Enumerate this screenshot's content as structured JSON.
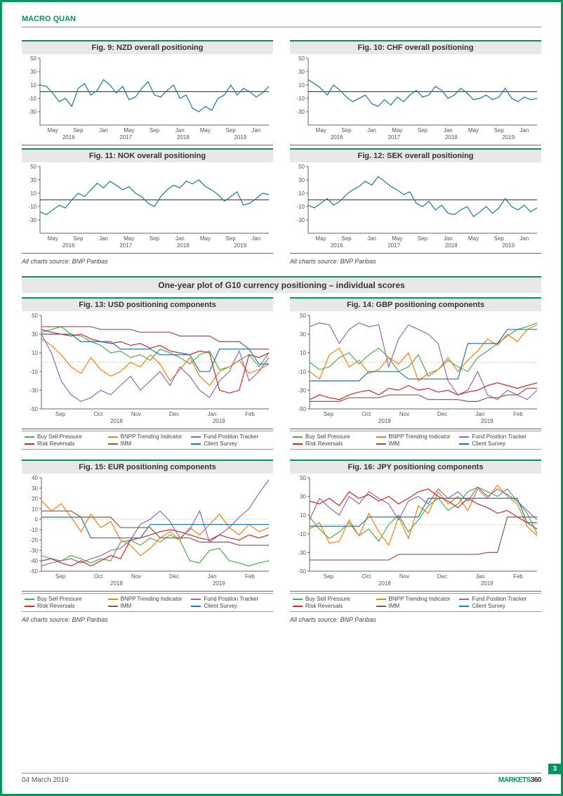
{
  "header": {
    "text": "MACRO QUAN"
  },
  "footer": {
    "date": "04 March 2019",
    "brand1": "MARKETS",
    "brand2": "360",
    "page": "3"
  },
  "source_label": "All charts source: BNP Paribas",
  "section_title": "One-year plot of G10 currency positioning – individual scores",
  "small_axis": {
    "ylim": [
      -50,
      50
    ],
    "yticks": [
      -30,
      -10,
      10,
      30,
      50
    ],
    "xlabels_top": [
      "May",
      "Sep",
      "Jan",
      "May",
      "Sep",
      "Jan",
      "May",
      "Sep",
      "Jan"
    ],
    "xlabels_bot": [
      "2016",
      "2017",
      "2018",
      "2019"
    ],
    "line_color": "#2a7fa8",
    "zero_color": "#333333",
    "tick_fontsize": 8
  },
  "charts_small": [
    {
      "id": "fig9",
      "title": "Fig. 9: NZD overall positioning",
      "values": [
        10,
        8,
        -2,
        -15,
        -10,
        -22,
        5,
        12,
        -5,
        2,
        18,
        10,
        -2,
        8,
        -12,
        -8,
        5,
        15,
        -5,
        -8,
        2,
        10,
        -10,
        -5,
        -25,
        -30,
        -22,
        -28,
        -10,
        -5,
        10,
        -5,
        5,
        0,
        -8,
        -2,
        8
      ]
    },
    {
      "id": "fig10",
      "title": "Fig. 10: CHF overall positioning",
      "values": [
        18,
        12,
        5,
        -5,
        10,
        2,
        -8,
        -15,
        -10,
        -5,
        -18,
        -22,
        -12,
        -20,
        -8,
        -15,
        -5,
        2,
        -8,
        -5,
        8,
        2,
        -10,
        -5,
        5,
        -2,
        -12,
        -10,
        -5,
        -12,
        -8,
        5,
        -10,
        -15,
        -8,
        -12,
        -10
      ]
    },
    {
      "id": "fig11",
      "title": "Fig. 11: NOK overall positioning",
      "values": [
        -18,
        -22,
        -15,
        -8,
        -12,
        0,
        10,
        5,
        15,
        25,
        18,
        28,
        22,
        15,
        20,
        10,
        5,
        -5,
        -10,
        5,
        15,
        22,
        18,
        28,
        24,
        30,
        20,
        15,
        8,
        -2,
        5,
        12,
        -8,
        -5,
        2,
        10,
        8
      ]
    },
    {
      "id": "fig12",
      "title": "Fig. 12: SEK overall positioning",
      "values": [
        -8,
        -12,
        -5,
        2,
        -8,
        -2,
        8,
        15,
        20,
        28,
        22,
        35,
        28,
        20,
        15,
        8,
        12,
        -5,
        -10,
        -2,
        -15,
        -8,
        -20,
        -22,
        -15,
        -10,
        -25,
        -18,
        -10,
        -20,
        -12,
        2,
        -10,
        -15,
        -8,
        -18,
        -12
      ]
    }
  ],
  "comp_axis": {
    "ylim": [
      -50,
      50
    ],
    "xlabels_top": [
      "Sep",
      "Oct",
      "Nov",
      "Dec",
      "Jan",
      "Feb"
    ],
    "xlabels_bot": [
      "2018",
      "2019"
    ],
    "tick_fontsize": 8,
    "zero_color": "#cccccc"
  },
  "legend_items": [
    {
      "label": "Buy Sell Pressure",
      "color": "#4daf4a"
    },
    {
      "label": "BNPP Trending Indicator",
      "color": "#ff7f0e"
    },
    {
      "label": "Fund Position Tracker",
      "color": "#9467bd"
    },
    {
      "label": "Risk Reversals",
      "color": "#d62728"
    },
    {
      "label": "IMM",
      "color": "#8c564b"
    },
    {
      "label": "Client Survey",
      "color": "#1f77b4"
    }
  ],
  "charts_comp": [
    {
      "id": "fig13",
      "title": "Fig. 13: USD positioning components",
      "yticks": [
        -50,
        -30,
        -10,
        10,
        30,
        50
      ],
      "series": {
        "Buy Sell Pressure": [
          32,
          35,
          38,
          30,
          28,
          22,
          18,
          10,
          12,
          5,
          8,
          2,
          14,
          10,
          5,
          -2,
          8,
          12,
          -8,
          -5,
          2,
          8,
          -5,
          10
        ],
        "BNPP Trending Indicator": [
          25,
          18,
          8,
          -5,
          -12,
          5,
          -8,
          -15,
          -10,
          0,
          -5,
          8,
          -2,
          -20,
          -8,
          5,
          -15,
          -25,
          -10,
          -5,
          2,
          -12,
          -8,
          -2
        ],
        "Fund Position Tracker": [
          30,
          10,
          -20,
          -35,
          -42,
          -38,
          -30,
          -35,
          -25,
          -15,
          -30,
          -20,
          -10,
          -25,
          -5,
          -15,
          -30,
          -38,
          -20,
          -10,
          12,
          -20,
          -10,
          5
        ],
        "Risk Reversals": [
          35,
          32,
          30,
          28,
          30,
          25,
          22,
          20,
          22,
          18,
          20,
          15,
          18,
          12,
          10,
          8,
          12,
          10,
          -30,
          -33,
          -30,
          8,
          5,
          10
        ],
        "IMM": [
          38,
          38,
          38,
          38,
          38,
          38,
          35,
          35,
          35,
          35,
          32,
          32,
          32,
          32,
          28,
          28,
          28,
          28,
          22,
          22,
          22,
          14,
          14,
          14
        ],
        "Client Survey": [
          30,
          30,
          30,
          30,
          22,
          22,
          22,
          22,
          14,
          14,
          14,
          14,
          8,
          8,
          8,
          8,
          -10,
          -10,
          14,
          14,
          14,
          14,
          -2,
          -2
        ]
      }
    },
    {
      "id": "fig14",
      "title": "Fig. 14: GBP positioning components",
      "yticks": [
        -50,
        -30,
        -10,
        10,
        30,
        50
      ],
      "series": {
        "Buy Sell Pressure": [
          0,
          -8,
          -5,
          5,
          10,
          -2,
          8,
          15,
          5,
          -10,
          -5,
          8,
          -15,
          -8,
          2,
          -5,
          -10,
          5,
          12,
          20,
          28,
          35,
          38,
          42
        ],
        "BNPP Trending Indicator": [
          -10,
          -18,
          8,
          15,
          -5,
          2,
          -12,
          -8,
          5,
          -2,
          10,
          -20,
          -12,
          -8,
          5,
          -10,
          2,
          12,
          25,
          18,
          30,
          22,
          35,
          40
        ],
        "Fund Position Tracker": [
          38,
          42,
          40,
          20,
          35,
          42,
          38,
          40,
          -5,
          25,
          40,
          35,
          30,
          20,
          -20,
          -35,
          -30,
          -10,
          -35,
          -40,
          -30,
          -35,
          -40,
          -30
        ],
        "Risk Reversals": [
          -40,
          -35,
          -38,
          -40,
          -35,
          -32,
          -30,
          -35,
          -28,
          -30,
          -25,
          -30,
          -28,
          -32,
          -30,
          -35,
          -32,
          -30,
          -25,
          -22,
          -25,
          -28,
          -25,
          -22
        ],
        "IMM": [
          -42,
          -42,
          -42,
          -42,
          -38,
          -38,
          -38,
          -38,
          -35,
          -35,
          -35,
          -35,
          -40,
          -40,
          -40,
          -40,
          -42,
          -42,
          -38,
          -38,
          -35,
          -35,
          -28,
          -28
        ],
        "Client Survey": [
          -20,
          -20,
          -20,
          -20,
          -20,
          -20,
          -10,
          -10,
          -10,
          -10,
          -18,
          -18,
          -18,
          -18,
          -18,
          -18,
          20,
          20,
          20,
          20,
          35,
          35,
          35,
          35
        ]
      }
    },
    {
      "id": "fig15",
      "title": "Fig. 15: EUR positioning components",
      "yticks": [
        -50,
        -40,
        -30,
        -20,
        -10,
        0,
        10,
        20,
        30,
        40
      ],
      "series": {
        "Buy Sell Pressure": [
          -35,
          -38,
          -40,
          -35,
          -38,
          -42,
          -38,
          -40,
          -22,
          -20,
          -25,
          -18,
          -22,
          -15,
          -20,
          -40,
          -42,
          -30,
          -28,
          -40,
          -42,
          -45,
          -42,
          -40
        ],
        "BNPP Trending Indicator": [
          18,
          8,
          15,
          2,
          -12,
          5,
          -8,
          -2,
          -20,
          -25,
          -35,
          -28,
          -18,
          -12,
          -20,
          -8,
          -15,
          -5,
          5,
          -8,
          -15,
          -5,
          -12,
          -8
        ],
        "Fund Position Tracker": [
          -45,
          -42,
          -40,
          -38,
          -42,
          -38,
          -35,
          -30,
          -28,
          -20,
          -5,
          0,
          8,
          -2,
          -18,
          -10,
          8,
          -22,
          -15,
          -8,
          2,
          10,
          25,
          38
        ],
        "Risk Reversals": [
          -40,
          -38,
          -42,
          -45,
          -40,
          -45,
          -40,
          -35,
          -38,
          -20,
          -18,
          -15,
          -12,
          -10,
          -12,
          -15,
          -18,
          -20,
          -15,
          -18,
          -20,
          -15,
          -18,
          -15
        ],
        "IMM": [
          8,
          8,
          8,
          8,
          2,
          2,
          2,
          2,
          -8,
          -8,
          -8,
          -8,
          -18,
          -18,
          -18,
          -18,
          -22,
          -22,
          -22,
          -22,
          -25,
          -25,
          -25,
          -25
        ],
        "Client Survey": [
          2,
          2,
          2,
          2,
          2,
          -18,
          -18,
          -18,
          -18,
          -18,
          -18,
          -5,
          -5,
          -5,
          -5,
          -5,
          -5,
          -5,
          -5,
          -5,
          -5,
          -5,
          -5,
          -5
        ]
      }
    },
    {
      "id": "fig16",
      "title": "Fig. 16: JPY positioning components",
      "yticks": [
        -50,
        -30,
        -10,
        10,
        30,
        50
      ],
      "series": {
        "Buy Sell Pressure": [
          8,
          -5,
          -15,
          -8,
          2,
          -12,
          -5,
          -18,
          0,
          10,
          -8,
          5,
          20,
          28,
          15,
          22,
          35,
          40,
          35,
          30,
          38,
          25,
          12,
          -10
        ],
        "BNPP Trending Indicator": [
          -5,
          2,
          -20,
          -18,
          5,
          -12,
          12,
          -8,
          -22,
          8,
          -15,
          20,
          12,
          35,
          22,
          30,
          15,
          38,
          28,
          42,
          30,
          22,
          -2,
          -12
        ],
        "Fund Position Tracker": [
          5,
          28,
          18,
          10,
          30,
          22,
          35,
          28,
          22,
          5,
          25,
          30,
          22,
          38,
          28,
          35,
          25,
          40,
          30,
          38,
          32,
          25,
          15,
          5
        ],
        "Risk Reversals": [
          25,
          22,
          28,
          20,
          35,
          28,
          32,
          25,
          30,
          22,
          28,
          35,
          38,
          30,
          25,
          18,
          28,
          22,
          18,
          12,
          15,
          8,
          2,
          -5
        ],
        "IMM": [
          -38,
          -38,
          -38,
          -38,
          -38,
          -38,
          -38,
          -38,
          -38,
          -32,
          -32,
          -32,
          -32,
          -32,
          -32,
          -32,
          -32,
          -32,
          -30,
          -30,
          8,
          8,
          8,
          8
        ],
        "Client Survey": [
          -2,
          -2,
          -2,
          -2,
          -2,
          -2,
          8,
          8,
          8,
          8,
          8,
          8,
          28,
          28,
          28,
          28,
          28,
          28,
          28,
          28,
          28,
          28,
          2,
          2
        ]
      }
    }
  ]
}
